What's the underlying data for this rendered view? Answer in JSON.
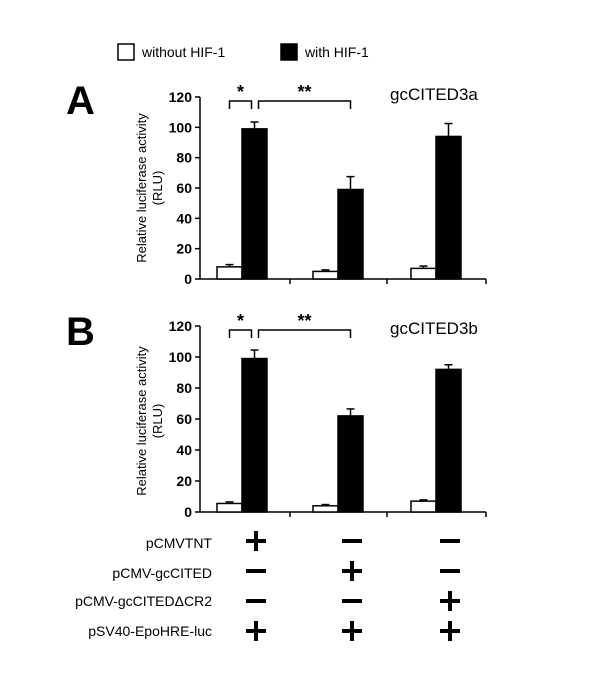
{
  "legend": {
    "items": [
      {
        "label": "without HIF-1",
        "color": "#ffffff"
      },
      {
        "label": "with HIF-1",
        "color": "#000000"
      }
    ]
  },
  "chart_data": [
    {
      "type": "bar",
      "panel_label": "A",
      "title": "gcCITED3a",
      "ylabel_line1": "Relative luciferase activity",
      "ylabel_line2": "(RLU)",
      "ylim": [
        0,
        120
      ],
      "yticks": [
        0,
        20,
        40,
        60,
        80,
        100,
        120
      ],
      "groups": 3,
      "series": [
        {
          "name": "without HIF-1",
          "values": [
            8,
            5,
            7
          ],
          "errors": [
            1.5,
            1,
            1.5
          ]
        },
        {
          "name": "with HIF-1",
          "values": [
            99,
            59,
            94
          ],
          "errors": [
            4.5,
            8.5,
            8.5
          ]
        }
      ],
      "significance": [
        {
          "label": "*",
          "from": [
            0,
            0
          ],
          "to": [
            0,
            1
          ]
        },
        {
          "label": "**",
          "from": [
            0,
            1
          ],
          "to": [
            1,
            1
          ]
        }
      ],
      "grid": false
    },
    {
      "type": "bar",
      "panel_label": "B",
      "title": "gcCITED3b",
      "ylabel_line1": "Relative luciferase activity",
      "ylabel_line2": "(RLU)",
      "ylim": [
        0,
        120
      ],
      "yticks": [
        0,
        20,
        40,
        60,
        80,
        100,
        120
      ],
      "groups": 3,
      "series": [
        {
          "name": "without HIF-1",
          "values": [
            5.5,
            4,
            7
          ],
          "errors": [
            1,
            0.8,
            0.8
          ]
        },
        {
          "name": "with HIF-1",
          "values": [
            99,
            62,
            92
          ],
          "errors": [
            5.5,
            4.5,
            3
          ]
        }
      ],
      "significance": [
        {
          "label": "*",
          "from": [
            0,
            0
          ],
          "to": [
            0,
            1
          ]
        },
        {
          "label": "**",
          "from": [
            0,
            1
          ],
          "to": [
            1,
            1
          ]
        }
      ],
      "grid": false
    }
  ],
  "conditions": [
    {
      "label": "pCMVTNT",
      "signs": [
        "+",
        "−",
        "−"
      ]
    },
    {
      "label": "pCMV-gcCITED",
      "signs": [
        "−",
        "+",
        "−"
      ]
    },
    {
      "label": "pCMV-gcCITEDΔCR2",
      "signs": [
        "−",
        "−",
        "+"
      ]
    },
    {
      "label": "pSV40-EpoHRE-luc",
      "signs": [
        "+",
        "+",
        "+"
      ]
    }
  ]
}
